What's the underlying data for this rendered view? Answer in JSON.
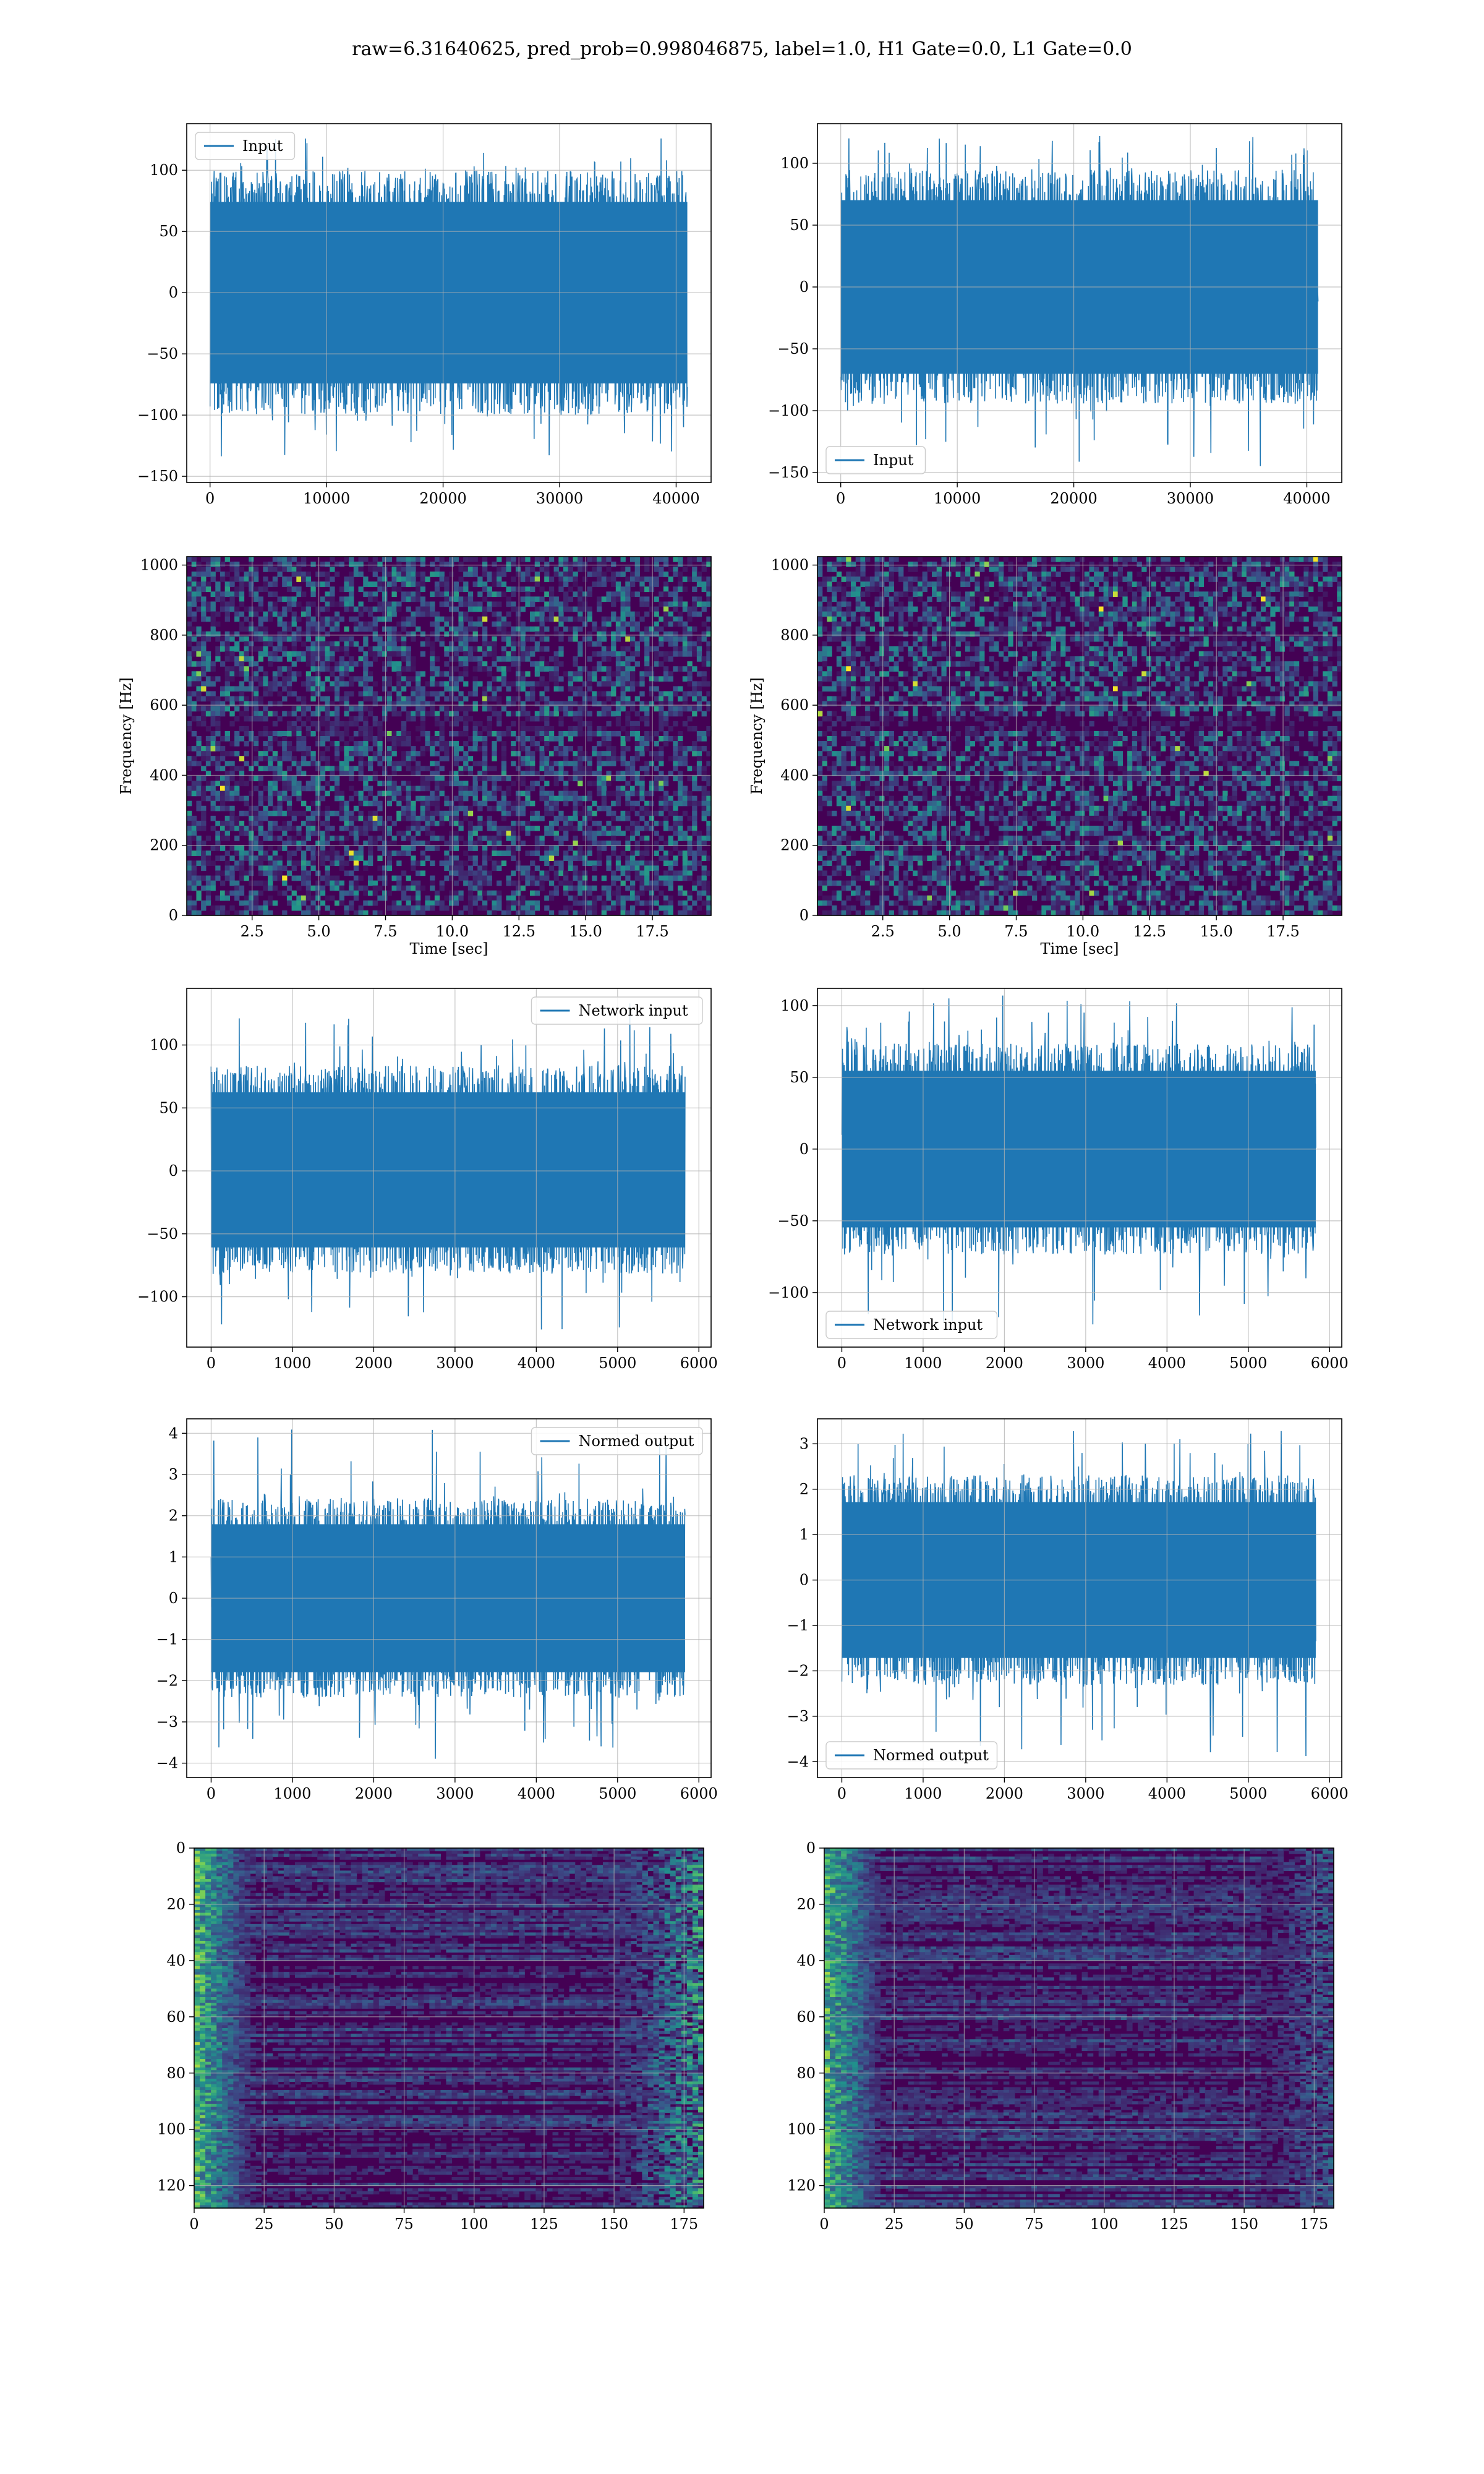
{
  "suptitle": "raw=6.31640625, pred_prob=0.998046875, label=1.0, H1 Gate=0.0, L1 Gate=0.0",
  "colors": {
    "line": "#1f77b4",
    "grid": "#b0b0b0",
    "axes": "#000000",
    "viridis_dark": "#440154",
    "viridis_mid": "#21918c",
    "viridis_bright": "#fde725"
  },
  "chart_data": [
    {
      "id": "input-h1",
      "type": "line",
      "series": [
        {
          "name": "Input",
          "y_range": [
            -135,
            133
          ],
          "envelope": [
            -95,
            95
          ]
        }
      ],
      "xlim": [
        -2000,
        43000
      ],
      "ylim": [
        -155,
        138
      ],
      "xticks": [
        0,
        10000,
        20000,
        30000,
        40000
      ],
      "yticks": [
        -150,
        -100,
        -50,
        0,
        50,
        100
      ],
      "legend": "upper left",
      "grid": true
    },
    {
      "id": "input-l1",
      "type": "line",
      "series": [
        {
          "name": "Input",
          "y_range": [
            -145,
            122
          ],
          "envelope": [
            -90,
            90
          ]
        }
      ],
      "xlim": [
        -2000,
        43000
      ],
      "ylim": [
        -158,
        132
      ],
      "xticks": [
        0,
        10000,
        20000,
        30000,
        40000
      ],
      "yticks": [
        -150,
        -100,
        -50,
        0,
        50,
        100
      ],
      "legend": "lower left",
      "grid": true
    },
    {
      "id": "spec-h1",
      "type": "heatmap",
      "xlim": [
        0.05,
        19.7
      ],
      "ylim": [
        0,
        1024
      ],
      "xticks": [
        "2.5",
        "5.0",
        "7.5",
        "10.0",
        "12.5",
        "15.0",
        "17.5"
      ],
      "yticks": [
        0,
        200,
        400,
        600,
        800,
        1000
      ],
      "xlabel": "Time [sec]",
      "ylabel": "Frequency [Hz]",
      "colormap": "viridis",
      "grid": true
    },
    {
      "id": "spec-l1",
      "type": "heatmap",
      "xlim": [
        0.05,
        19.7
      ],
      "ylim": [
        0,
        1024
      ],
      "xticks": [
        "2.5",
        "5.0",
        "7.5",
        "10.0",
        "12.5",
        "15.0",
        "17.5"
      ],
      "yticks": [
        0,
        200,
        400,
        600,
        800,
        1000
      ],
      "xlabel": "Time [sec]",
      "ylabel": "Frequency [Hz]",
      "colormap": "viridis",
      "grid": true
    },
    {
      "id": "net-h1",
      "type": "line",
      "series": [
        {
          "name": "Network input",
          "y_range": [
            -127,
            133
          ],
          "envelope": [
            -78,
            80
          ]
        }
      ],
      "xlim": [
        -300,
        6150
      ],
      "ylim": [
        -140,
        145
      ],
      "xticks": [
        0,
        1000,
        2000,
        3000,
        4000,
        5000,
        6000
      ],
      "yticks": [
        -100,
        -50,
        0,
        50,
        100
      ],
      "legend": "upper right",
      "grid": true
    },
    {
      "id": "net-l1",
      "type": "line",
      "series": [
        {
          "name": "Network input",
          "y_range": [
            -125,
            107
          ],
          "envelope": [
            -70,
            70
          ]
        }
      ],
      "xlim": [
        -300,
        6150
      ],
      "ylim": [
        -138,
        112
      ],
      "xticks": [
        0,
        1000,
        2000,
        3000,
        4000,
        5000,
        6000
      ],
      "yticks": [
        -100,
        -50,
        0,
        50,
        100
      ],
      "legend": "lower left",
      "grid": true
    },
    {
      "id": "norm-h1",
      "type": "line",
      "series": [
        {
          "name": "Normed output",
          "y_range": [
            -3.9,
            4.1
          ],
          "envelope": [
            -2.3,
            2.3
          ]
        }
      ],
      "xlim": [
        -300,
        6150
      ],
      "ylim": [
        -4.35,
        4.35
      ],
      "xticks": [
        0,
        1000,
        2000,
        3000,
        4000,
        5000,
        6000
      ],
      "yticks": [
        -4,
        -3,
        -2,
        -1,
        0,
        1,
        2,
        3,
        4
      ],
      "legend": "upper right",
      "grid": true
    },
    {
      "id": "norm-l1",
      "type": "line",
      "series": [
        {
          "name": "Normed output",
          "y_range": [
            -3.9,
            3.4
          ],
          "envelope": [
            -2.2,
            2.2
          ]
        }
      ],
      "xlim": [
        -300,
        6150
      ],
      "ylim": [
        -4.35,
        3.55
      ],
      "xticks": [
        0,
        1000,
        2000,
        3000,
        4000,
        5000,
        6000
      ],
      "yticks": [
        -4,
        -3,
        -2,
        -1,
        0,
        1,
        2,
        3
      ],
      "legend": "lower left",
      "grid": true
    },
    {
      "id": "feat-h1",
      "type": "heatmap",
      "xlim": [
        0,
        182
      ],
      "ylim": [
        128,
        0
      ],
      "xticks": [
        0,
        25,
        50,
        75,
        100,
        125,
        150,
        175
      ],
      "yticks": [
        0,
        20,
        40,
        60,
        80,
        100,
        120
      ],
      "colormap": "viridis",
      "grid": true
    },
    {
      "id": "feat-l1",
      "type": "heatmap",
      "xlim": [
        0,
        182
      ],
      "ylim": [
        128,
        0
      ],
      "xticks": [
        0,
        25,
        50,
        75,
        100,
        125,
        150,
        175
      ],
      "yticks": [
        0,
        20,
        40,
        60,
        80,
        100,
        120
      ],
      "colormap": "viridis",
      "grid": true
    }
  ]
}
